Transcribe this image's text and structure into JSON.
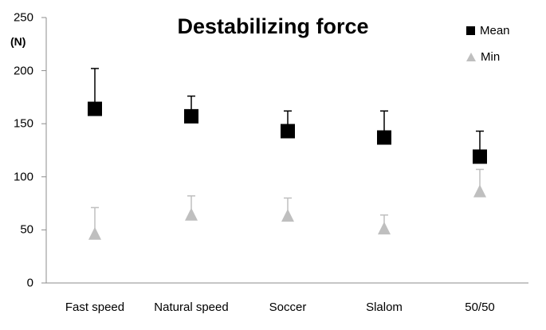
{
  "chart_data": {
    "type": "scatter",
    "title": "Destabilizing force",
    "xlabel": "",
    "ylabel": "(N)",
    "ylim": [
      0,
      250
    ],
    "yticks": [
      0,
      50,
      100,
      150,
      200,
      250
    ],
    "grid": false,
    "legend_position": "top-right",
    "categories": [
      "Fast speed",
      "Natural speed",
      "Soccer",
      "Slalom",
      "50/50"
    ],
    "series": [
      {
        "name": "Mean",
        "marker": "square",
        "color": "#000000",
        "values": [
          164,
          157,
          143,
          137,
          119
        ],
        "error_upper": [
          202,
          176,
          162,
          162,
          143
        ]
      },
      {
        "name": "Min",
        "marker": "triangle",
        "color": "#bfbfbf",
        "values": [
          46,
          64,
          63,
          51,
          86
        ],
        "error_upper": [
          71,
          82,
          80,
          64,
          107
        ]
      }
    ]
  },
  "ui": {
    "title": "Destabilizing force",
    "unit": "(N)",
    "legend": [
      {
        "label": "Mean"
      },
      {
        "label": "Min"
      }
    ]
  }
}
